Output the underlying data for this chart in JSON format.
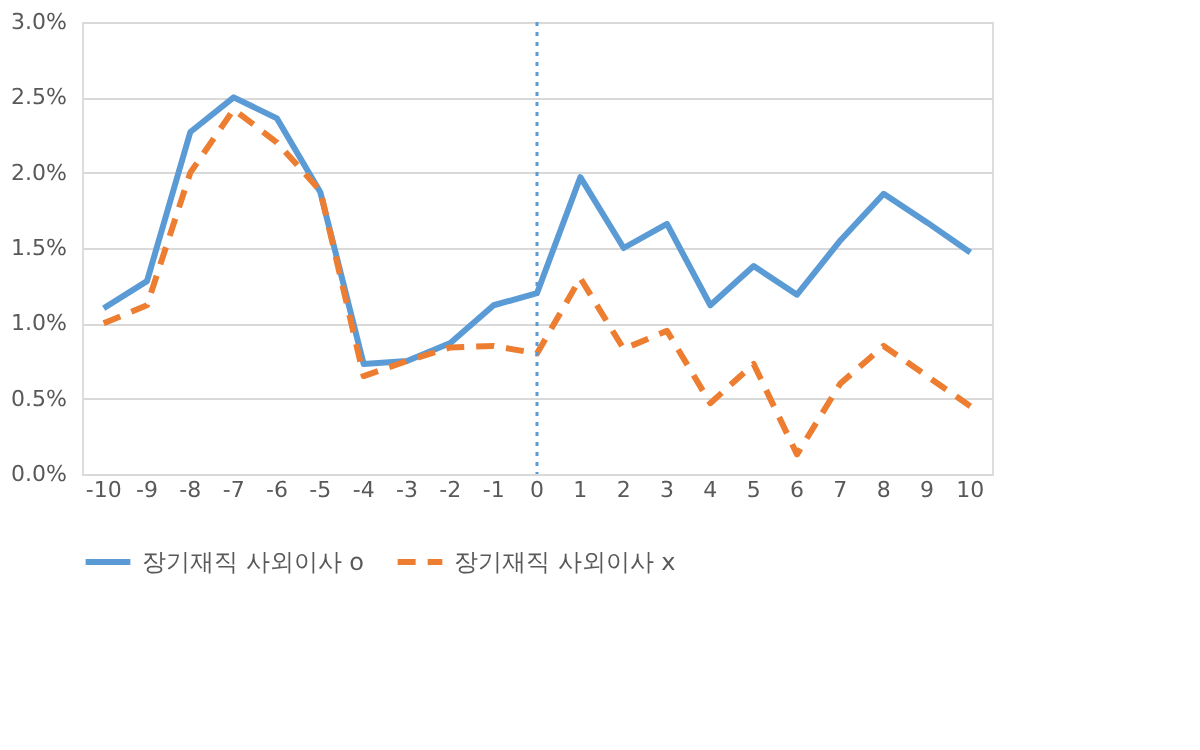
{
  "chart_data": {
    "type": "line",
    "categories": [
      "-10",
      "-9",
      "-8",
      "-7",
      "-6",
      "-5",
      "-4",
      "-3",
      "-2",
      "-1",
      "0",
      "1",
      "2",
      "3",
      "4",
      "5",
      "6",
      "7",
      "8",
      "9",
      "10"
    ],
    "series": [
      {
        "name": "장기재직 사외이사 o",
        "color": "#5b9bd5",
        "line_style": "solid",
        "values": [
          1.1,
          1.28,
          2.27,
          2.5,
          2.36,
          1.87,
          0.73,
          0.75,
          0.87,
          1.12,
          1.2,
          1.97,
          1.5,
          1.66,
          1.12,
          1.38,
          1.19,
          1.55,
          1.86,
          1.67,
          1.47
        ]
      },
      {
        "name": "장기재직 사외이사 x",
        "color": "#ed7d31",
        "line_style": "dashed",
        "values": [
          1.0,
          1.12,
          2.0,
          2.42,
          2.2,
          1.88,
          0.65,
          0.75,
          0.84,
          0.85,
          0.8,
          1.3,
          0.83,
          0.95,
          0.47,
          0.73,
          0.13,
          0.6,
          0.85,
          0.65,
          0.45
        ]
      }
    ],
    "ylim": [
      0,
      3
    ],
    "yticks": [
      {
        "value": 0,
        "label": "0.0%"
      },
      {
        "value": 0.5,
        "label": "0.5%"
      },
      {
        "value": 1,
        "label": "1.0%"
      },
      {
        "value": 1.5,
        "label": "1.5%"
      },
      {
        "value": 2,
        "label": "2.0%"
      },
      {
        "value": 2.5,
        "label": "2.5%"
      },
      {
        "value": 3,
        "label": "3.0%"
      }
    ],
    "ref_lines": [
      {
        "axis": "x",
        "value": "0",
        "color": "#5b9bd5",
        "line_style": "dotted"
      }
    ],
    "grid": "y",
    "legend": "bottom",
    "marker": "none"
  }
}
